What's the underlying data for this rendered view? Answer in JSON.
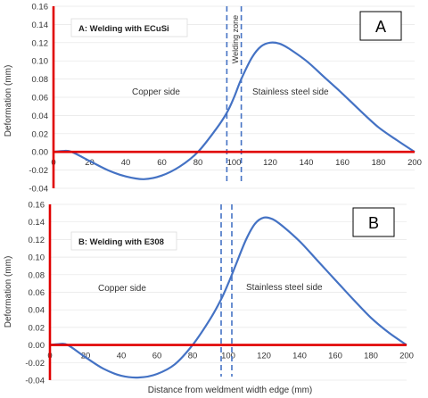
{
  "chart_data": [
    {
      "type": "line",
      "panel_letter": "A",
      "legend_text": "A: Welding with ECuSi",
      "region_labels": [
        "Copper side",
        "Stainless steel  side"
      ],
      "zone_label": "Welding zone",
      "xlabel": "",
      "ylabel": "Deformation (mm)",
      "xlim": [
        0,
        200
      ],
      "ylim": [
        -0.04,
        0.16
      ],
      "x_ticks": [
        "0",
        "20",
        "40",
        "60",
        "80",
        "100",
        "120",
        "140",
        "160",
        "180",
        "200"
      ],
      "y_ticks": [
        "-0.04",
        "-0.02",
        "0.00",
        "0.02",
        "0.04",
        "0.06",
        "0.08",
        "0.10",
        "0.12",
        "0.14",
        "0.16"
      ],
      "weld_zone_x": [
        96,
        104
      ],
      "grid": true,
      "series": [
        {
          "x": [
            0,
            5,
            10,
            20,
            30,
            40,
            50,
            60,
            70,
            80,
            90,
            96,
            100,
            104,
            110,
            115,
            120,
            125,
            130,
            140,
            150,
            160,
            170,
            180,
            190,
            200
          ],
          "y": [
            0.0,
            0.001,
            0.0,
            -0.01,
            -0.02,
            -0.027,
            -0.03,
            -0.026,
            -0.016,
            0.0,
            0.025,
            0.043,
            0.06,
            0.08,
            0.104,
            0.116,
            0.12,
            0.119,
            0.114,
            0.1,
            0.082,
            0.064,
            0.045,
            0.027,
            0.013,
            0.0
          ]
        }
      ]
    },
    {
      "type": "line",
      "panel_letter": "B",
      "legend_text": "B: Welding with E308",
      "region_labels": [
        "Copper side",
        "Stainless steel side"
      ],
      "xlabel": "Distance from weldment width edge (mm)",
      "ylabel": "Deformation (mm)",
      "xlim": [
        0,
        200
      ],
      "ylim": [
        -0.04,
        0.16
      ],
      "x_ticks": [
        "0",
        "20",
        "40",
        "60",
        "80",
        "100",
        "120",
        "140",
        "160",
        "180",
        "200"
      ],
      "y_ticks": [
        "-0.04",
        "-0.02",
        "0.00",
        "0.02",
        "0.04",
        "0.06",
        "0.08",
        "0.10",
        "0.12",
        "0.14",
        "0.16"
      ],
      "weld_zone_x": [
        96,
        102
      ],
      "grid": true,
      "series": [
        {
          "x": [
            0,
            5,
            10,
            20,
            30,
            40,
            50,
            60,
            70,
            80,
            90,
            96,
            100,
            104,
            110,
            115,
            120,
            125,
            130,
            140,
            150,
            160,
            170,
            180,
            190,
            200
          ],
          "y": [
            0.0,
            0.001,
            0.0,
            -0.014,
            -0.027,
            -0.035,
            -0.037,
            -0.033,
            -0.022,
            0.0,
            0.03,
            0.052,
            0.07,
            0.09,
            0.12,
            0.138,
            0.145,
            0.143,
            0.136,
            0.118,
            0.096,
            0.074,
            0.052,
            0.031,
            0.014,
            0.0
          ]
        }
      ]
    }
  ],
  "colors": {
    "curve": "#4472c4",
    "axis": "#e00000",
    "zone_lines": "#4472c4",
    "grid": "#e6e6e6",
    "text": "#333333"
  }
}
